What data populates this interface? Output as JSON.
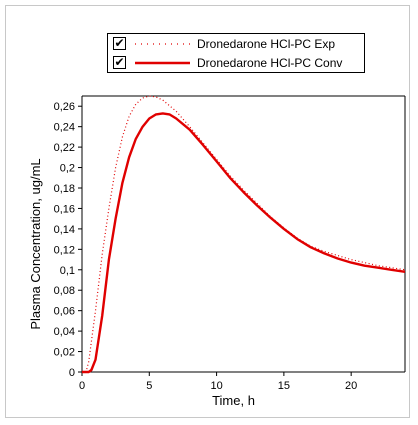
{
  "chart_data": {
    "type": "line",
    "title": "",
    "xlabel": "Time, h",
    "ylabel": "Plasma Concentration, ug/mL",
    "xlim": [
      0,
      24
    ],
    "ylim": [
      0,
      0.27
    ],
    "xticks": [
      0,
      5,
      10,
      15,
      20
    ],
    "xtick_labels": [
      "0",
      "5",
      "10",
      "15",
      "20"
    ],
    "yticks": [
      0,
      0.02,
      0.04,
      0.06,
      0.08,
      0.1,
      0.12,
      0.14,
      0.16,
      0.18,
      0.2,
      0.22,
      0.24,
      0.26
    ],
    "ytick_labels": [
      "0",
      "0,02",
      "0,04",
      "0,06",
      "0,08",
      "0,1",
      "0,12",
      "0,14",
      "0,16",
      "0,18",
      "0,2",
      "0,22",
      "0,24",
      "0,26"
    ],
    "grid": false,
    "legend_position": "top",
    "series": [
      {
        "name": "Dronedarone HCl-PC Exp",
        "style": "dotted",
        "color": "#e00000",
        "checked": true,
        "x": [
          0,
          0.3,
          0.5,
          1,
          1.5,
          2,
          2.5,
          3,
          3.5,
          4,
          4.5,
          5,
          5.5,
          6,
          7,
          8,
          9,
          10,
          11,
          12,
          13,
          14,
          15,
          16,
          17,
          18,
          19,
          20,
          21,
          22,
          23,
          24
        ],
        "y": [
          0,
          0,
          0.01,
          0.06,
          0.115,
          0.16,
          0.2,
          0.23,
          0.25,
          0.262,
          0.268,
          0.27,
          0.269,
          0.266,
          0.255,
          0.24,
          0.224,
          0.208,
          0.192,
          0.178,
          0.165,
          0.152,
          0.141,
          0.131,
          0.123,
          0.118,
          0.114,
          0.11,
          0.107,
          0.104,
          0.102,
          0.1
        ]
      },
      {
        "name": "Dronedarone HCl-PC Conv",
        "style": "solid",
        "color": "#e00000",
        "checked": true,
        "x": [
          0,
          0.5,
          0.7,
          1,
          1.5,
          2,
          2.5,
          3,
          3.5,
          4,
          4.5,
          5,
          5.5,
          6,
          6.5,
          7,
          8,
          9,
          10,
          11,
          12,
          13,
          14,
          15,
          16,
          17,
          18,
          19,
          20,
          21,
          22,
          23,
          24
        ],
        "y": [
          0,
          0,
          0.002,
          0.012,
          0.055,
          0.11,
          0.15,
          0.185,
          0.21,
          0.228,
          0.24,
          0.248,
          0.252,
          0.253,
          0.252,
          0.248,
          0.237,
          0.222,
          0.206,
          0.19,
          0.176,
          0.163,
          0.151,
          0.14,
          0.13,
          0.122,
          0.116,
          0.111,
          0.107,
          0.104,
          0.102,
          0.1,
          0.098
        ]
      }
    ]
  }
}
